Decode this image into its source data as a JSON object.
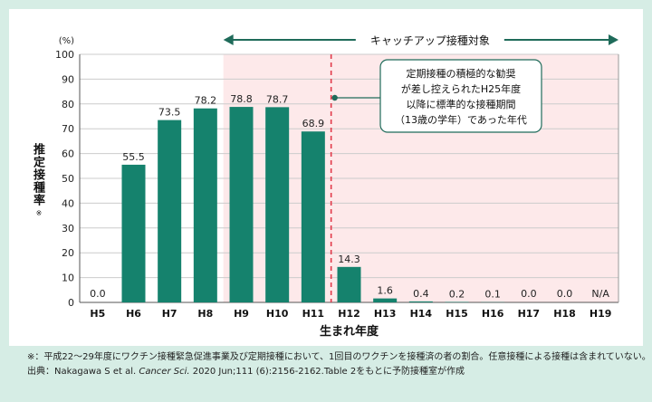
{
  "chart_data": {
    "type": "bar",
    "title": "",
    "xlabel": "生まれ年度",
    "ylabel": "推定接種率",
    "ylabel_note": "※",
    "y_unit": "(%)",
    "ylim": [
      0,
      100
    ],
    "yticks": [
      "0",
      "10",
      "20",
      "30",
      "40",
      "50",
      "60",
      "70",
      "80",
      "90",
      "100"
    ],
    "categories": [
      "H5",
      "H6",
      "H7",
      "H8",
      "H9",
      "H10",
      "H11",
      "H12",
      "H13",
      "H14",
      "H15",
      "H16",
      "H17",
      "H18",
      "H19"
    ],
    "values": [
      0.0,
      55.5,
      73.5,
      78.2,
      78.8,
      78.7,
      68.9,
      14.3,
      1.6,
      0.4,
      0.2,
      0.1,
      0.0,
      0.0,
      null
    ],
    "value_labels": [
      "0.0",
      "55.5",
      "73.5",
      "78.2",
      "78.8",
      "78.7",
      "68.9",
      "14.3",
      "1.6",
      "0.4",
      "0.2",
      "0.1",
      "0.0",
      "0.0",
      "N/A"
    ],
    "bar_color": "#15826d",
    "catchup_range": {
      "from": "H9",
      "to": "H19",
      "label": "キャッチアップ接種対象",
      "shade_color": "#fde9ea"
    },
    "boundary_line": {
      "between": [
        "H11",
        "H12"
      ],
      "color": "#e23a4a"
    },
    "annotation": {
      "lines": [
        "定期接種の積極的な勧奨",
        "が差し控えられたH25年度",
        "以降に標準的な接種期間",
        "（13歳の学年）であった年代"
      ]
    }
  },
  "footnote": {
    "line1": "※：平成22～29年度にワクチン接種緊急促進事業及び定期接種において、1回目のワクチンを接種済の者の割合。任意接種による接種は含まれていない。",
    "line2_prefix": "出典：Nakagawa S et al. ",
    "line2_journal": "Cancer Sci.",
    "line2_suffix": " 2020 Jun;111 (6):2156-2162.Table 2をもとに予防接種室が作成"
  },
  "colors": {
    "frame": "#d6ede5",
    "arrow": "#1f6b5a",
    "grid": "#cccccc"
  }
}
